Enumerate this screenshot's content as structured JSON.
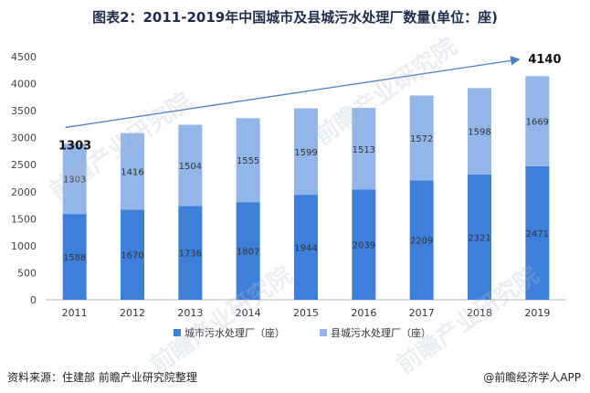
{
  "title": "图表2：2011-2019年中国城市及县城污水处理厂数量(单位：座)",
  "source": "资料来源：住建部 前瞻产业研究院整理",
  "brand": "@前瞻经济学人APP",
  "watermark": "前瞻产业研究院",
  "colors": {
    "city": "#3d7fd9",
    "county": "#93b6e8",
    "trend": "#4a7fc4",
    "axis": "#b8b8b8"
  },
  "chart_data": {
    "type": "bar",
    "stacked": true,
    "categories": [
      "2011",
      "2012",
      "2013",
      "2014",
      "2015",
      "2016",
      "2017",
      "2018",
      "2019"
    ],
    "series": [
      {
        "name": "城市污水处理厂（座）",
        "values": [
          1588,
          1670,
          1736,
          1807,
          1944,
          2039,
          2209,
          2321,
          2471
        ]
      },
      {
        "name": "县城污水处理厂（座）",
        "values": [
          1303,
          1416,
          1504,
          1555,
          1599,
          1513,
          1572,
          1598,
          1669
        ]
      }
    ],
    "ylim": [
      0,
      4500
    ],
    "yticks": [
      0,
      500,
      1000,
      1500,
      2000,
      2500,
      3000,
      3500,
      4000,
      4500
    ],
    "trend": {
      "start_label": "1303",
      "end_label": "4140",
      "start_value": 3190,
      "end_value": 4450
    },
    "grid": false,
    "legend": "bottom"
  }
}
